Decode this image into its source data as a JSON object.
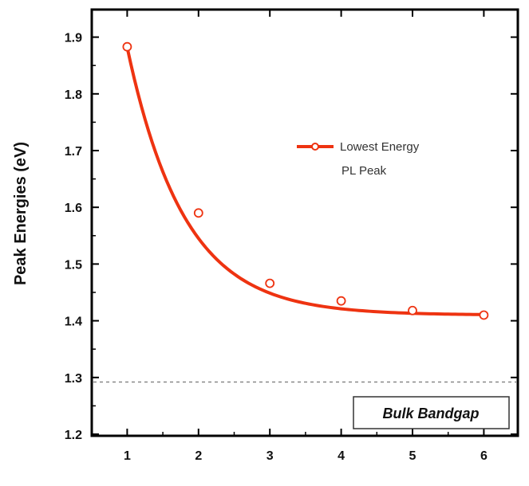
{
  "chart_data": {
    "type": "line",
    "title": "",
    "xlabel": "",
    "ylabel": "Peak Energies (eV)",
    "xlim": [
      0.6,
      6.6
    ],
    "ylim": [
      1.2,
      1.95
    ],
    "x_ticks": [
      1,
      2,
      3,
      4,
      5,
      6
    ],
    "x_tick_labels": [
      "1",
      "2",
      "3",
      "4",
      "5",
      "6"
    ],
    "y_ticks": [
      1.2,
      1.3,
      1.4,
      1.5,
      1.6,
      1.7,
      1.8,
      1.9
    ],
    "y_tick_labels": [
      "1.2",
      "1.3",
      "1.4",
      "1.5",
      "1.6",
      "1.7",
      "1.8",
      "1.9"
    ],
    "grid": false,
    "legend_position": "upper-right",
    "series": [
      {
        "name": "Lowest Energy PL Peak",
        "legend_lines": [
          "Lowest Energy",
          "PL Peak"
        ],
        "x": [
          1,
          2,
          3,
          4,
          5,
          6
        ],
        "y": [
          1.883,
          1.59,
          1.466,
          1.435,
          1.418,
          1.41
        ],
        "color": "#ee3311",
        "marker": "open-circle",
        "fit_curve": {
          "model": "exponential decay",
          "y0": 1.41,
          "amplitude": 0.472,
          "t1": 0.8,
          "x0": 1
        }
      }
    ],
    "reference_lines": [
      {
        "y": 1.292,
        "style": "dashed",
        "color": "#888888"
      }
    ],
    "annotations": [
      {
        "text": "Bulk Bandgap",
        "boxed": true
      }
    ]
  }
}
